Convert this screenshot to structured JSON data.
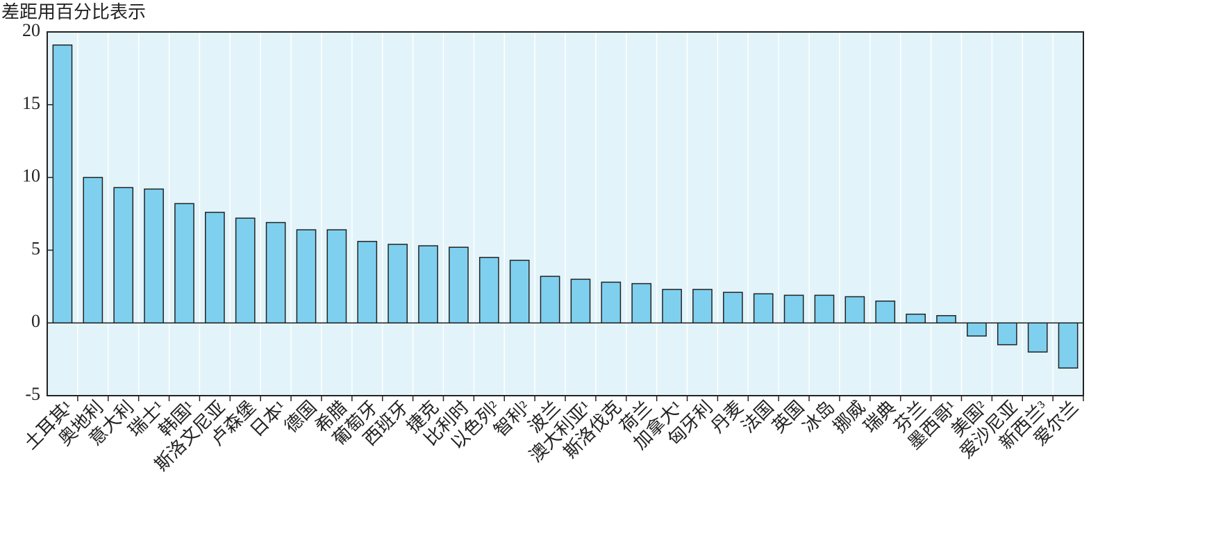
{
  "chart_data": {
    "type": "bar",
    "y_label": "差距用百分比表示",
    "categories": [
      "土耳其¹",
      "奥地利",
      "意大利",
      "瑞士¹",
      "韩国¹",
      "斯洛文尼亚",
      "卢森堡",
      "日本¹",
      "德国",
      "希腊",
      "葡萄牙",
      "西班牙",
      "捷克",
      "比利时",
      "以色列²",
      "智利²",
      "波兰",
      "澳大利亚¹",
      "斯洛伐克",
      "荷兰",
      "加拿大¹",
      "匈牙利",
      "丹麦",
      "法国",
      "英国",
      "冰岛",
      "挪威",
      "瑞典",
      "芬兰",
      "墨西哥¹",
      "美国²",
      "爱沙尼亚",
      "新西兰³",
      "爱尔兰"
    ],
    "values": [
      19.1,
      10.0,
      9.3,
      9.2,
      8.2,
      7.6,
      7.2,
      6.9,
      6.4,
      6.4,
      5.6,
      5.4,
      5.3,
      5.2,
      4.5,
      4.3,
      3.2,
      3.0,
      2.8,
      2.7,
      2.3,
      2.3,
      2.1,
      2.0,
      1.9,
      1.9,
      1.8,
      1.5,
      0.6,
      0.5,
      -0.9,
      -1.5,
      -2.0,
      -3.1
    ],
    "color": "#7fd0ef",
    "background": "#e2f4fa",
    "ylim": [
      -5,
      20
    ],
    "yticks": [
      -5,
      0,
      5,
      10,
      15,
      20
    ],
    "grid": false
  }
}
